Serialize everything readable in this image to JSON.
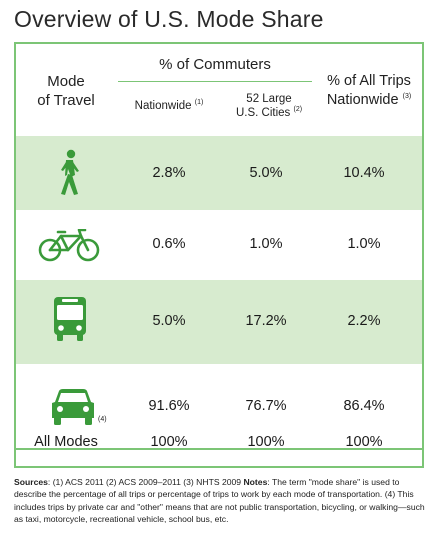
{
  "title": "Overview of U.S. Mode Share",
  "headers": {
    "mode_line1": "Mode",
    "mode_line2": "of Travel",
    "commuters": "% of Commuters",
    "nationwide": "Nationwide",
    "nationwide_note": "(1)",
    "cities_line1": "52 Large",
    "cities_line2": "U.S. Cities",
    "cities_note": "(2)",
    "alltrips_line1": "% of All Trips",
    "alltrips_line2": "Nationwide",
    "alltrips_note": "(3)"
  },
  "rows": [
    {
      "icon": "pedestrian-icon",
      "nationwide": "2.8%",
      "cities": "5.0%",
      "all_trips": "10.4%"
    },
    {
      "icon": "bicycle-icon",
      "nationwide": "0.6%",
      "cities": "1.0%",
      "all_trips": "1.0%"
    },
    {
      "icon": "bus-icon",
      "nationwide": "5.0%",
      "cities": "17.2%",
      "all_trips": "2.2%"
    },
    {
      "icon": "car-icon",
      "icon_note": "(4)",
      "nationwide": "91.6%",
      "cities": "76.7%",
      "all_trips": "86.4%"
    }
  ],
  "totals": {
    "label": "All Modes",
    "nationwide": "100%",
    "cities": "100%",
    "all_trips": "100%"
  },
  "sources": {
    "label": "Sources",
    "text1": ": (1) ACS 2011 (2) ACS 2009–2011 (3) NHTS 2009 ",
    "notes_label": "Notes",
    "text2": ": The term \"mode share\" is used to describe the percentage of all trips or percentage of trips to work by each mode of transportation. (4) This includes trips by private car and \"other\" means that are not public transportation, bicycling, or walking—such as taxi, motorcycle, recreational vehicle, school bus, etc."
  },
  "colors": {
    "accent": "#7cc576",
    "icon": "#3a9a3a",
    "row_shade": "#d7ebcf"
  }
}
